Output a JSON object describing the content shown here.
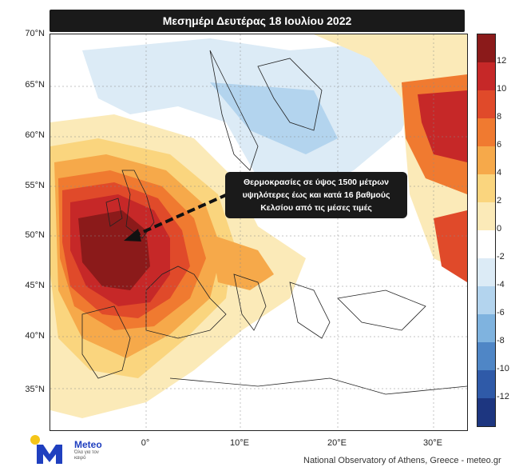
{
  "title": "Μεσημέρι Δευτέρας 18 Ιουλίου 2022",
  "callout": {
    "line1": "Θερμοκρασίες σε ύψος 1500 μέτρων",
    "line2": "υψηλότερες έως και κατά 16 βαθμούς",
    "line3": "Κελσίου από τις μέσες τιμές"
  },
  "lat_labels": [
    "70°N",
    "65°N",
    "60°N",
    "55°N",
    "50°N",
    "45°N",
    "40°N",
    "35°N"
  ],
  "lon_labels": [
    "0°",
    "10°E",
    "20°E",
    "30°E"
  ],
  "colorbar": {
    "ticks": [
      "12",
      "10",
      "8",
      "6",
      "4",
      "2",
      "0",
      "-2",
      "-4",
      "-6",
      "-8",
      "-10",
      "-12"
    ],
    "colors": [
      "#8b1a1a",
      "#c62828",
      "#e04a2a",
      "#f07a30",
      "#f6a94a",
      "#fad57e",
      "#fbeab8",
      "#ffffff",
      "#dcebf6",
      "#b3d4ee",
      "#7fb3df",
      "#4f86c6",
      "#2f5aa8",
      "#1d3680"
    ]
  },
  "logo": {
    "name": "Meteo",
    "tagline": "Όλα για τον καιρό"
  },
  "credit": "National Observatory of Athens, Greece - meteo.gr"
}
